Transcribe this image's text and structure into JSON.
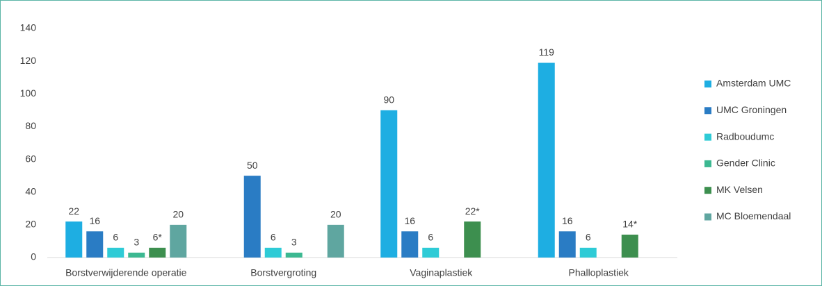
{
  "chart_data": {
    "type": "bar",
    "categories": [
      "Borstverwijderende operatie",
      "Borstvergroting",
      "Vaginaplastiek",
      "Phalloplastiek"
    ],
    "series": [
      {
        "name": "Amsterdam UMC",
        "color": "#1eaee2",
        "values": [
          22,
          null,
          90,
          119
        ]
      },
      {
        "name": "UMC Groningen",
        "color": "#2a7cc4",
        "values": [
          16,
          50,
          16,
          16
        ]
      },
      {
        "name": "Radboudumc",
        "color": "#2ecbd6",
        "values": [
          6,
          6,
          6,
          6
        ]
      },
      {
        "name": "Gender Clinic",
        "color": "#3cb891",
        "values": [
          3,
          3,
          null,
          null
        ]
      },
      {
        "name": "MK Velsen",
        "color": "#3d8f4f",
        "values": [
          6,
          null,
          22,
          14
        ],
        "value_labels": [
          "6*",
          null,
          "22*",
          "14*"
        ]
      },
      {
        "name": "MC Bloemendaal",
        "color": "#5fa6a0",
        "values": [
          20,
          20,
          null,
          null
        ]
      }
    ],
    "ylim": [
      0,
      140
    ],
    "yticks": [
      0,
      20,
      40,
      60,
      80,
      100,
      120,
      140
    ],
    "grid": false,
    "legend": "right"
  }
}
